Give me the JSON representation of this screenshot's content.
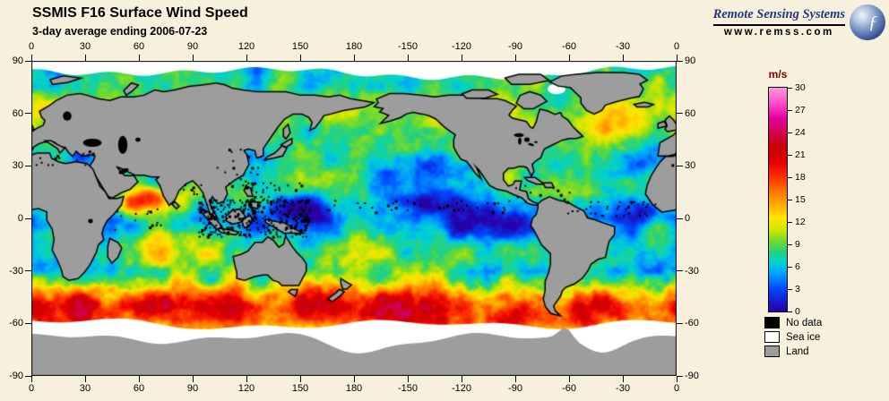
{
  "header": {
    "title": "SSMIS F16 Surface Wind Speed",
    "subtitle": "3-day average ending 2006-07-23"
  },
  "branding": {
    "name": "Remote Sensing Systems",
    "url": "www.remss.com",
    "logo_glyph": "ƒ"
  },
  "axes": {
    "lon_ticks": [
      "0",
      "30",
      "60",
      "90",
      "120",
      "150",
      "180",
      "-150",
      "-120",
      "-90",
      "-60",
      "-30",
      "0"
    ],
    "lat_ticks": [
      "90",
      "60",
      "30",
      "0",
      "-30",
      "-60",
      "-90"
    ]
  },
  "colorbar": {
    "units": "m/s",
    "tick_values": [
      30,
      27,
      24,
      21,
      18,
      15,
      12,
      9,
      6,
      3,
      0
    ],
    "min": 0,
    "max": 30
  },
  "legend": {
    "items": [
      {
        "label": "No data",
        "color": "#000000"
      },
      {
        "label": "Sea ice",
        "color": "#ffffff"
      },
      {
        "label": "Land",
        "color": "#9d9d9d"
      }
    ]
  },
  "chart_data": {
    "type": "heatmap",
    "title": "SSMIS F16 Surface Wind Speed",
    "subtitle": "3-day average ending 2006-07-23",
    "variable": "surface wind speed",
    "units": "m/s",
    "projection": "equirectangular",
    "lon_range": [
      0,
      360
    ],
    "lat_range": [
      -90,
      90
    ],
    "lon_tick_step": 30,
    "lat_tick_step": 30,
    "scale_range": [
      0,
      30
    ],
    "scale_tick_step": 3,
    "colormap": [
      {
        "v": 0,
        "c": "#2800a8"
      },
      {
        "v": 3,
        "c": "#0048ff"
      },
      {
        "v": 5,
        "c": "#00a0ff"
      },
      {
        "v": 6.5,
        "c": "#00d2d2"
      },
      {
        "v": 8,
        "c": "#28d278"
      },
      {
        "v": 9.5,
        "c": "#78dc28"
      },
      {
        "v": 11,
        "c": "#d2e600"
      },
      {
        "v": 12.5,
        "c": "#ffe600"
      },
      {
        "v": 14,
        "c": "#ffb400"
      },
      {
        "v": 16,
        "c": "#ff7800"
      },
      {
        "v": 18,
        "c": "#ff3200"
      },
      {
        "v": 20,
        "c": "#e60000"
      },
      {
        "v": 22,
        "c": "#c80000"
      },
      {
        "v": 24,
        "c": "#d20050"
      },
      {
        "v": 26,
        "c": "#e600a0"
      },
      {
        "v": 28,
        "c": "#ff50c8"
      },
      {
        "v": 30,
        "c": "#ff96dc"
      }
    ],
    "special_categories": [
      {
        "label": "No data",
        "color": "#000000"
      },
      {
        "label": "Sea ice",
        "color": "#ffffff"
      },
      {
        "label": "Land",
        "color": "#9d9d9d"
      }
    ],
    "features": [
      "Southern Ocean storm track with strong winds 15-25 m/s (red) circling Antarctica",
      "Monsoon jet with high winds (red/orange) in the Arabian Sea",
      "Calm doldrums 0-5 m/s (purple/blue) in equatorial east Pacific and west Pacific warm pool",
      "Trade-wind belts around 7-12 m/s (green/yellow) in the subtropics",
      "Black no-data speckling over the Maritime Continent and ITCZ rain bands",
      "White sea-ice ring around Antarctica and ice cap at the Arctic edge",
      "Continents masked in gray"
    ]
  }
}
